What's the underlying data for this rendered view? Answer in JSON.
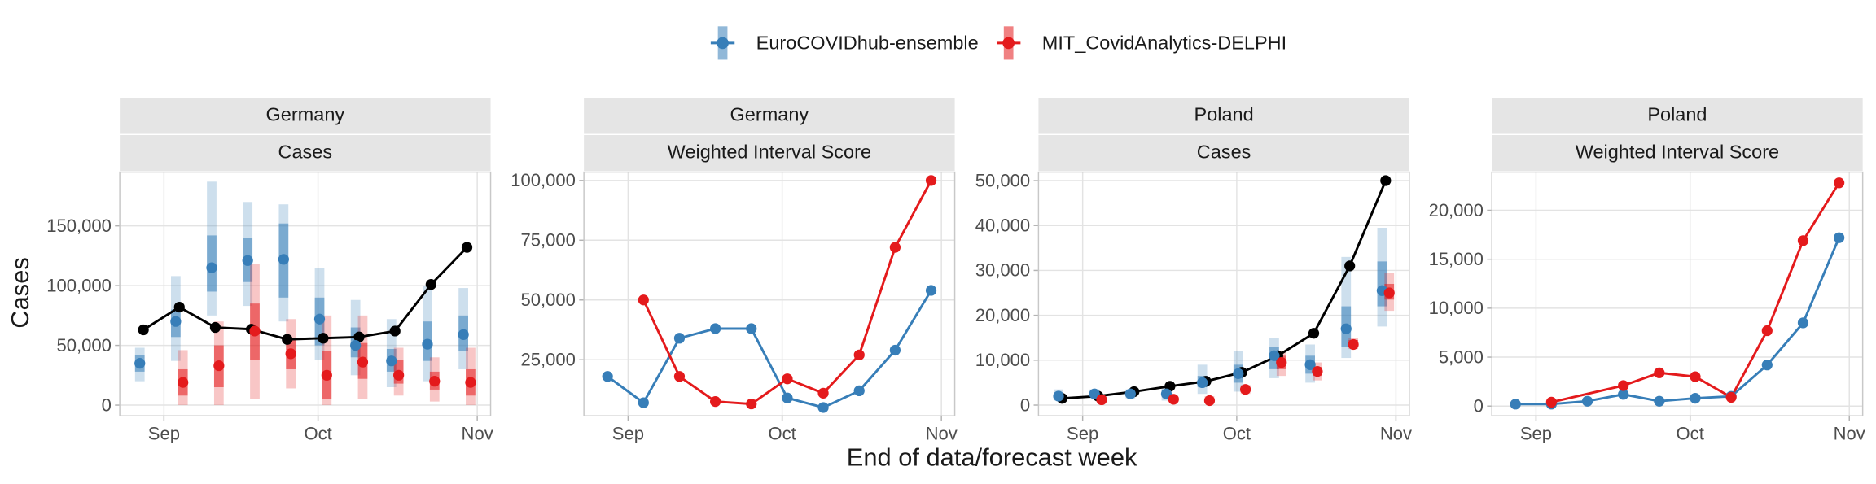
{
  "chart_data": [
    {
      "type": "interval",
      "x_label": "End of data/forecast week",
      "y_label": "Cases",
      "strip": [
        "Germany",
        "Cases"
      ],
      "grid": true,
      "xlim": [
        -8.6,
        63.6
      ],
      "xticks": [
        {
          "value": 0,
          "label": "Sep"
        },
        {
          "value": 30,
          "label": "Oct"
        },
        {
          "value": 61,
          "label": "Nov"
        }
      ],
      "ylim": [
        -9000,
        195000
      ],
      "yticks": [
        0,
        {
          "value": 50000,
          "label": "50,000"
        },
        {
          "value": 100000,
          "label": "100,000"
        },
        {
          "value": 150000,
          "label": "150,000"
        }
      ],
      "observed": {
        "color": "#000000",
        "x": [
          -4,
          3,
          10,
          17,
          24,
          31,
          38,
          45,
          52,
          59
        ],
        "values": [
          63000,
          82000,
          65000,
          63500,
          55000,
          56000,
          57000,
          62000,
          101000,
          132000
        ]
      },
      "series": [
        {
          "name": "EuroCOVIDhub-ensemble",
          "color": "#377eb8",
          "x": [
            -4,
            3,
            10,
            17,
            24,
            31,
            38,
            45,
            52,
            59
          ],
          "values": [
            35000,
            70000,
            115000,
            121000,
            122000,
            72000,
            50000,
            37000,
            51000,
            59000
          ],
          "lower_50": [
            28000,
            57000,
            95000,
            103000,
            90000,
            50000,
            40000,
            28000,
            37000,
            45000
          ],
          "upper_50": [
            42000,
            80000,
            142000,
            140000,
            152000,
            90000,
            65000,
            47000,
            70000,
            75000
          ],
          "lower_90": [
            20000,
            37000,
            75000,
            83000,
            70000,
            38000,
            25000,
            15000,
            20000,
            30000
          ],
          "upper_90": [
            48000,
            108000,
            187000,
            170000,
            168000,
            115000,
            88000,
            72000,
            100000,
            98000
          ]
        },
        {
          "name": "MIT_CovidAnalytics-DELPHI",
          "color": "#e41a1c",
          "x": [
            3,
            10,
            17,
            24,
            31,
            38,
            45,
            52,
            59
          ],
          "values": [
            19000,
            33000,
            62000,
            43000,
            25000,
            36000,
            25000,
            20000,
            19000
          ],
          "lower_50": [
            8000,
            15000,
            38000,
            30000,
            5000,
            22000,
            18000,
            13000,
            8000
          ],
          "upper_50": [
            30000,
            50000,
            85000,
            55000,
            45000,
            52000,
            38000,
            28000,
            30000
          ],
          "lower_90": [
            0,
            0,
            5000,
            14000,
            0,
            5000,
            8000,
            3000,
            0
          ],
          "upper_90": [
            46000,
            70000,
            118000,
            72000,
            75000,
            75000,
            48000,
            40000,
            48000
          ]
        }
      ]
    },
    {
      "type": "line",
      "strip": [
        "Germany",
        "Weighted Interval Score"
      ],
      "grid": true,
      "xlim": [
        -8.6,
        63.6
      ],
      "xticks": [
        {
          "value": 0,
          "label": "Sep"
        },
        {
          "value": 30,
          "label": "Oct"
        },
        {
          "value": 61,
          "label": "Nov"
        }
      ],
      "ylim": [
        1500,
        103500
      ],
      "yticks": [
        {
          "value": 25000,
          "label": "25,000"
        },
        {
          "value": 50000,
          "label": "50,000"
        },
        {
          "value": 75000,
          "label": "75,000"
        },
        {
          "value": 100000,
          "label": "100,000"
        }
      ],
      "series": [
        {
          "name": "EuroCOVIDhub-ensemble",
          "color": "#377eb8",
          "x": [
            -4,
            3,
            10,
            17,
            24,
            31,
            38,
            45,
            52,
            59
          ],
          "values": [
            18000,
            7000,
            34000,
            38000,
            38000,
            9000,
            5000,
            12000,
            29000,
            54000
          ]
        },
        {
          "name": "MIT_CovidAnalytics-DELPHI",
          "color": "#e41a1c",
          "x": [
            3,
            10,
            17,
            24,
            31,
            38,
            45,
            52,
            59
          ],
          "values": [
            50000,
            18000,
            7500,
            6500,
            17000,
            11000,
            27000,
            72000,
            100000
          ]
        }
      ]
    },
    {
      "type": "interval",
      "strip": [
        "Poland",
        "Cases"
      ],
      "grid": true,
      "xlim": [
        -8.6,
        63.6
      ],
      "xticks": [
        {
          "value": 0,
          "label": "Sep"
        },
        {
          "value": 30,
          "label": "Oct"
        },
        {
          "value": 61,
          "label": "Nov"
        }
      ],
      "ylim": [
        -2400,
        51900
      ],
      "yticks": [
        0,
        {
          "value": 10000,
          "label": "10,000"
        },
        {
          "value": 20000,
          "label": "20,000"
        },
        {
          "value": 30000,
          "label": "30,000"
        },
        {
          "value": 40000,
          "label": "40,000"
        },
        {
          "value": 50000,
          "label": "50,000"
        }
      ],
      "observed": {
        "color": "#000000",
        "x": [
          -4,
          3,
          10,
          17,
          24,
          31,
          38,
          45,
          52,
          59
        ],
        "values": [
          1500,
          2000,
          3000,
          4200,
          5300,
          7300,
          11000,
          16000,
          31000,
          50000
        ]
      },
      "series": [
        {
          "name": "EuroCOVIDhub-ensemble",
          "color": "#377eb8",
          "x": [
            -4,
            3,
            10,
            17,
            24,
            31,
            38,
            45,
            52,
            59
          ],
          "values": [
            2000,
            2500,
            2500,
            2500,
            5000,
            7000,
            11000,
            9000,
            17000,
            25500
          ],
          "lower_50": [
            1500,
            2000,
            2000,
            2000,
            4000,
            5000,
            8000,
            7000,
            13000,
            22000
          ],
          "upper_50": [
            2500,
            3000,
            3000,
            3500,
            6500,
            9000,
            13000,
            11000,
            22000,
            32000
          ],
          "lower_90": [
            1000,
            1500,
            1500,
            1000,
            2500,
            3000,
            6000,
            5000,
            10500,
            17500
          ],
          "upper_90": [
            3500,
            3500,
            3500,
            4000,
            9000,
            12000,
            15000,
            13500,
            33000,
            39500
          ]
        },
        {
          "name": "MIT_CovidAnalytics-DELPHI",
          "color": "#e41a1c",
          "x": [
            3,
            17,
            24,
            31,
            38,
            45,
            52,
            59
          ],
          "values": [
            1200,
            1300,
            1000,
            3500,
            9500,
            7500,
            13500,
            25000
          ],
          "lower_50": [
            1000,
            1000,
            800,
            3000,
            8000,
            6500,
            13000,
            23500
          ],
          "upper_50": [
            1500,
            1800,
            1500,
            4000,
            11000,
            8500,
            14500,
            27000
          ],
          "lower_90": [
            800,
            800,
            500,
            2500,
            6500,
            5500,
            12500,
            21000
          ],
          "upper_90": [
            1800,
            2000,
            2000,
            4500,
            12000,
            9500,
            15000,
            29500
          ]
        }
      ]
    },
    {
      "type": "line",
      "strip": [
        "Poland",
        "Weighted Interval Score"
      ],
      "grid": true,
      "xlim": [
        -8.6,
        63.6
      ],
      "xticks": [
        {
          "value": 0,
          "label": "Sep"
        },
        {
          "value": 30,
          "label": "Oct"
        },
        {
          "value": 61,
          "label": "Nov"
        }
      ],
      "ylim": [
        -1000,
        23900
      ],
      "yticks": [
        0,
        {
          "value": 5000,
          "label": "5,000"
        },
        {
          "value": 10000,
          "label": "10,000"
        },
        {
          "value": 15000,
          "label": "15,000"
        },
        {
          "value": 20000,
          "label": "20,000"
        }
      ],
      "series": [
        {
          "name": "EuroCOVIDhub-ensemble",
          "color": "#377eb8",
          "x": [
            -4,
            3,
            10,
            17,
            24,
            31,
            38,
            45,
            52,
            59
          ],
          "values": [
            200,
            200,
            500,
            1200,
            500,
            800,
            1000,
            4200,
            8500,
            17200
          ]
        },
        {
          "name": "MIT_CovidAnalytics-DELPHI",
          "color": "#e41a1c",
          "x": [
            3,
            17,
            24,
            31,
            38,
            45,
            52,
            59
          ],
          "values": [
            400,
            2100,
            3400,
            3000,
            900,
            7700,
            16900,
            22800
          ]
        }
      ]
    }
  ]
}
